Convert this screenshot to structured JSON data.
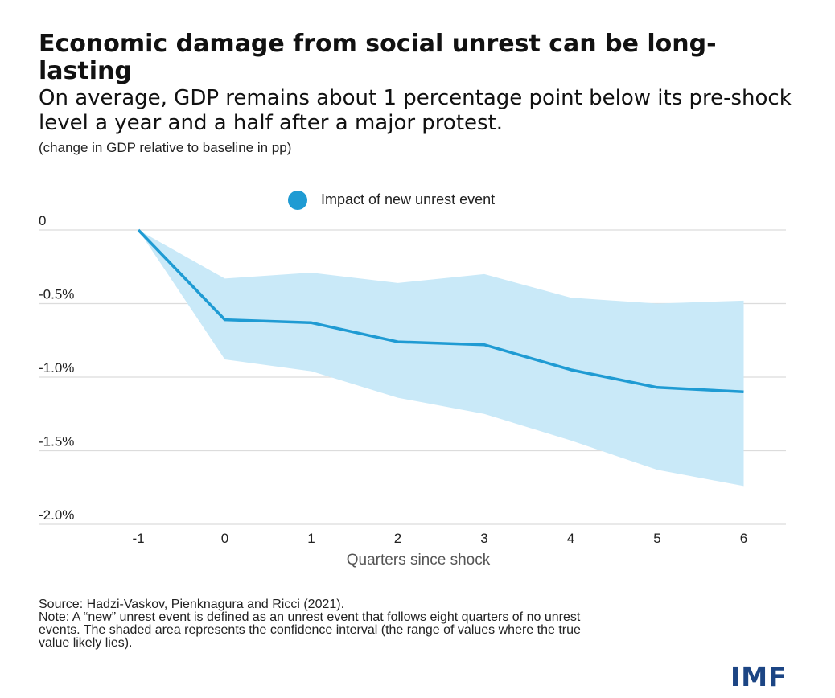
{
  "header": {
    "title": "Economic damage from social unrest can be long-lasting",
    "subtitle": "On average, GDP remains about 1 percentage point below its pre-shock level a year and a half after a major protest.",
    "unit_note": "(change in GDP relative to baseline in pp)"
  },
  "chart_data": {
    "type": "area",
    "title": "Economic damage from social unrest can be long-lasting",
    "xlabel": "Quarters since shock",
    "ylabel": "(change in GDP relative to baseline in pp)",
    "x": [
      -1,
      0,
      1,
      2,
      3,
      4,
      5,
      6
    ],
    "x_tick_labels": [
      "-1",
      "0",
      "1",
      "2",
      "3",
      "4",
      "5",
      "6"
    ],
    "ylim": [
      -2.0,
      0
    ],
    "y_ticks": [
      0,
      -0.5,
      -1.0,
      -1.5,
      -2.0
    ],
    "y_tick_labels": [
      "0",
      "-0.5%",
      "-1.0%",
      "-1.5%",
      "-2.0%"
    ],
    "series": [
      {
        "name": "Impact of new unrest event",
        "color": "#1f9bd3",
        "values": [
          0,
          -0.61,
          -0.63,
          -0.76,
          -0.78,
          -0.95,
          -1.07,
          -1.1
        ],
        "upper": [
          0,
          -0.33,
          -0.29,
          -0.36,
          -0.3,
          -0.46,
          -0.5,
          -0.48
        ],
        "lower": [
          0,
          -0.88,
          -0.96,
          -1.14,
          -1.25,
          -1.43,
          -1.63,
          -1.74
        ]
      }
    ],
    "band_color": "#c9e9f8",
    "grid": true,
    "legend": "top-center"
  },
  "footer": {
    "source": "Source: Hadzi-Vaskov, Pienknagura and Ricci (2021).",
    "note_line1": "Note: A “new” unrest event is defined as an unrest event that follows eight quarters of no unrest",
    "note_line2": "events. The shaded area represents the confidence interval (the range of values where the true",
    "note_line3": "value likely lies).",
    "logo": "IMF",
    "logo_color": "#1c4584"
  }
}
